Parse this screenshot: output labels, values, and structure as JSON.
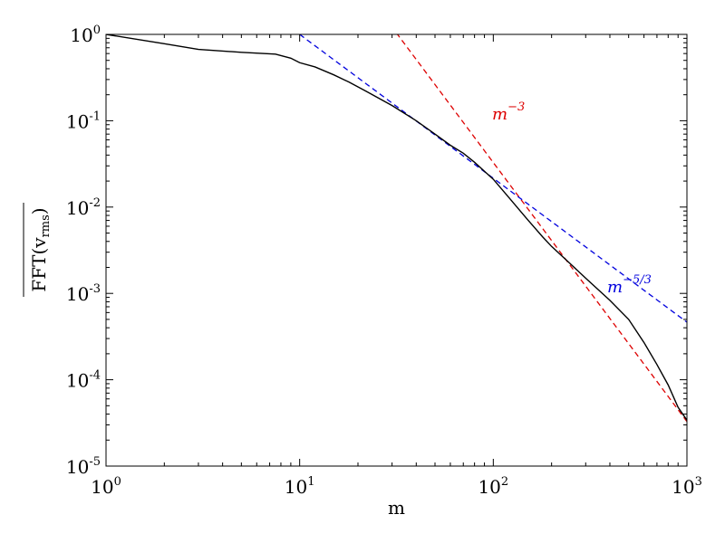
{
  "chart_data": {
    "type": "line",
    "title": "",
    "xlabel": "m",
    "ylabel": "FFT(v_rms)",
    "xscale": "log",
    "yscale": "log",
    "xlim": [
      1,
      1000
    ],
    "ylim": [
      1e-05,
      1
    ],
    "grid": false,
    "x_ticks": [
      {
        "value": 1,
        "base": "10",
        "exp": "0"
      },
      {
        "value": 10,
        "base": "10",
        "exp": "1"
      },
      {
        "value": 100,
        "base": "10",
        "exp": "2"
      },
      {
        "value": 1000,
        "base": "10",
        "exp": "3"
      }
    ],
    "y_ticks": [
      {
        "value": 1,
        "base": "10",
        "exp": "0"
      },
      {
        "value": 0.1,
        "base": "10",
        "exp": "-1"
      },
      {
        "value": 0.01,
        "base": "10",
        "exp": "-2"
      },
      {
        "value": 0.001,
        "base": "10",
        "exp": "-3"
      },
      {
        "value": 0.0001,
        "base": "10",
        "exp": "-4"
      },
      {
        "value": 1e-05,
        "base": "10",
        "exp": "-5"
      }
    ],
    "ylabel_parts": {
      "main": "FFT(v",
      "sub": "rms",
      "close": ")"
    },
    "series": [
      {
        "color": "#000000",
        "style": "solid",
        "x": [
          1,
          2,
          3,
          5,
          7.5,
          9,
          10,
          12,
          15,
          18,
          22,
          30,
          40,
          50,
          60,
          70,
          80,
          90,
          100,
          120,
          150,
          180,
          200,
          250,
          300,
          400,
          500,
          600,
          700,
          800,
          900,
          1000
        ],
        "y": [
          1.0,
          0.78,
          0.67,
          0.62,
          0.59,
          0.53,
          0.47,
          0.42,
          0.34,
          0.28,
          0.22,
          0.15,
          0.1,
          0.07,
          0.052,
          0.042,
          0.033,
          0.026,
          0.021,
          0.013,
          0.0072,
          0.0045,
          0.0035,
          0.0022,
          0.0015,
          0.00083,
          0.0005,
          0.00027,
          0.00015,
          8.7e-05,
          4.8e-05,
          3.4e-05
        ]
      }
    ],
    "reference_lines": [
      {
        "label_base": "m",
        "label_exp": "−3",
        "slope": -3,
        "anchor_x": 32,
        "anchor_y": 1.0,
        "x_range": [
          31.6,
          1000
        ],
        "color": "#dd0000",
        "style": "dashed"
      },
      {
        "label_base": "m",
        "label_exp": "−5/3",
        "slope": -1.6667,
        "anchor_x": 10,
        "anchor_y": 1.0,
        "x_range": [
          10,
          1000
        ],
        "color": "#0000dd",
        "style": "dashed"
      }
    ]
  }
}
